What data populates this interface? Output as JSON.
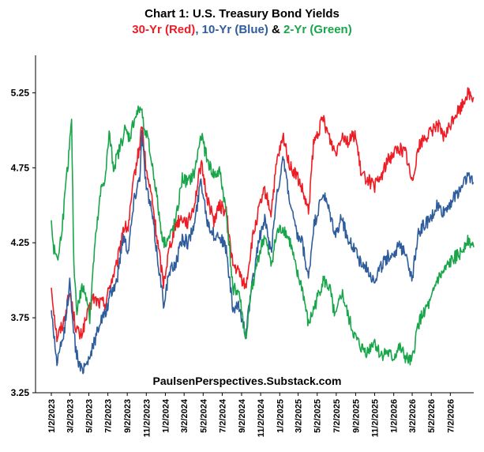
{
  "chart_data": {
    "type": "line",
    "title": "Chart 1: U.S. Treasury Bond Yields",
    "subtitle": {
      "red": "30-Yr (Red)",
      "sep1": ", ",
      "blue": "10-Yr (Blue)",
      "sep2": " & ",
      "green": "2-Yr (Green)"
    },
    "annotation": "PaulsenPerspectives.Substack.com",
    "xlabel": "",
    "ylabel": "",
    "ylim": [
      3.25,
      5.5
    ],
    "yticks": [
      "3.25",
      "3.75",
      "4.25",
      "4.75",
      "5.25"
    ],
    "xticks": [
      "1/2/2023",
      "3/2/2023",
      "5/2/2023",
      "7/2/2023",
      "9/2/2023",
      "11/2/2023",
      "1/2/2024",
      "3/2/2024",
      "5/2/2024",
      "7/2/2024",
      "9/2/2024",
      "11/2/2024",
      "1/2/2025",
      "3/2/2025",
      "5/2/2025",
      "7/2/2025",
      "9/2/2025",
      "11/2/2025",
      "1/2/2026",
      "3/2/2026",
      "5/2/2026",
      "7/2/2026"
    ],
    "xrange": [
      "2023-01-02",
      "2026-09-15"
    ],
    "grid": false,
    "legend": "none",
    "series": [
      {
        "name": "30-Yr",
        "color": "#ee1c25",
        "points": [
          [
            "2023-01-02",
            3.95
          ],
          [
            "2023-01-20",
            3.62
          ],
          [
            "2023-02-10",
            3.72
          ],
          [
            "2023-03-02",
            3.92
          ],
          [
            "2023-03-20",
            3.7
          ],
          [
            "2023-04-05",
            3.62
          ],
          [
            "2023-04-25",
            3.75
          ],
          [
            "2023-05-15",
            3.88
          ],
          [
            "2023-06-05",
            3.85
          ],
          [
            "2023-06-25",
            3.85
          ],
          [
            "2023-07-10",
            3.98
          ],
          [
            "2023-07-31",
            4.1
          ],
          [
            "2023-08-20",
            4.35
          ],
          [
            "2023-09-05",
            4.35
          ],
          [
            "2023-09-25",
            4.7
          ],
          [
            "2023-10-12",
            4.9
          ],
          [
            "2023-10-19",
            5.05
          ],
          [
            "2023-11-02",
            4.72
          ],
          [
            "2023-11-20",
            4.55
          ],
          [
            "2023-12-05",
            4.3
          ],
          [
            "2023-12-27",
            3.98
          ],
          [
            "2024-01-15",
            4.22
          ],
          [
            "2024-02-05",
            4.38
          ],
          [
            "2024-02-25",
            4.42
          ],
          [
            "2024-03-15",
            4.38
          ],
          [
            "2024-04-05",
            4.52
          ],
          [
            "2024-04-25",
            4.78
          ],
          [
            "2024-05-15",
            4.55
          ],
          [
            "2024-06-05",
            4.4
          ],
          [
            "2024-06-25",
            4.5
          ],
          [
            "2024-07-15",
            4.45
          ],
          [
            "2024-08-05",
            4.1
          ],
          [
            "2024-08-25",
            4.05
          ],
          [
            "2024-09-15",
            3.95
          ],
          [
            "2024-10-05",
            4.25
          ],
          [
            "2024-10-25",
            4.45
          ],
          [
            "2024-11-15",
            4.6
          ],
          [
            "2024-12-05",
            4.45
          ],
          [
            "2024-12-25",
            4.8
          ],
          [
            "2025-01-14",
            4.95
          ],
          [
            "2025-02-05",
            4.75
          ],
          [
            "2025-02-25",
            4.7
          ],
          [
            "2025-03-15",
            4.6
          ],
          [
            "2025-04-04",
            4.45
          ],
          [
            "2025-04-20",
            4.9
          ],
          [
            "2025-05-21",
            5.08
          ],
          [
            "2025-06-10",
            4.95
          ],
          [
            "2025-06-30",
            4.85
          ],
          [
            "2025-07-20",
            4.98
          ],
          [
            "2025-08-10",
            4.92
          ],
          [
            "2025-08-31",
            4.98
          ],
          [
            "2025-09-20",
            4.7
          ],
          [
            "2025-10-10",
            4.68
          ],
          [
            "2025-10-31",
            4.62
          ],
          [
            "2025-11-20",
            4.68
          ],
          [
            "2025-12-10",
            4.78
          ],
          [
            "2025-12-31",
            4.85
          ],
          [
            "2026-01-20",
            4.88
          ],
          [
            "2026-02-10",
            4.85
          ],
          [
            "2026-03-01",
            4.65
          ],
          [
            "2026-03-20",
            4.88
          ],
          [
            "2026-04-10",
            4.95
          ],
          [
            "2026-04-30",
            4.98
          ],
          [
            "2026-05-20",
            5.05
          ],
          [
            "2026-06-10",
            4.95
          ],
          [
            "2026-06-25",
            5.0
          ],
          [
            "2026-07-15",
            5.1
          ],
          [
            "2026-08-05",
            5.15
          ],
          [
            "2026-08-25",
            5.25
          ],
          [
            "2026-09-15",
            5.22
          ]
        ]
      },
      {
        "name": "10-Yr",
        "color": "#2f5d9c",
        "points": [
          [
            "2023-01-02",
            3.8
          ],
          [
            "2023-01-20",
            3.45
          ],
          [
            "2023-02-10",
            3.62
          ],
          [
            "2023-03-02",
            3.98
          ],
          [
            "2023-03-20",
            3.55
          ],
          [
            "2023-04-05",
            3.4
          ],
          [
            "2023-04-25",
            3.45
          ],
          [
            "2023-05-15",
            3.55
          ],
          [
            "2023-06-05",
            3.72
          ],
          [
            "2023-06-25",
            3.78
          ],
          [
            "2023-07-10",
            3.9
          ],
          [
            "2023-07-31",
            4.0
          ],
          [
            "2023-08-20",
            4.3
          ],
          [
            "2023-09-05",
            4.2
          ],
          [
            "2023-09-25",
            4.55
          ],
          [
            "2023-10-12",
            4.7
          ],
          [
            "2023-10-19",
            4.98
          ],
          [
            "2023-11-02",
            4.62
          ],
          [
            "2023-11-20",
            4.45
          ],
          [
            "2023-12-05",
            4.2
          ],
          [
            "2023-12-27",
            3.85
          ],
          [
            "2024-01-15",
            4.05
          ],
          [
            "2024-02-05",
            4.12
          ],
          [
            "2024-02-25",
            4.28
          ],
          [
            "2024-03-15",
            4.25
          ],
          [
            "2024-04-05",
            4.38
          ],
          [
            "2024-04-25",
            4.68
          ],
          [
            "2024-05-15",
            4.4
          ],
          [
            "2024-06-05",
            4.3
          ],
          [
            "2024-06-25",
            4.3
          ],
          [
            "2024-07-15",
            4.2
          ],
          [
            "2024-08-05",
            3.8
          ],
          [
            "2024-08-25",
            3.82
          ],
          [
            "2024-09-15",
            3.65
          ],
          [
            "2024-10-05",
            3.95
          ],
          [
            "2024-10-25",
            4.25
          ],
          [
            "2024-11-15",
            4.4
          ],
          [
            "2024-12-05",
            4.18
          ],
          [
            "2024-12-25",
            4.6
          ],
          [
            "2025-01-14",
            4.8
          ],
          [
            "2025-02-05",
            4.5
          ],
          [
            "2025-02-25",
            4.3
          ],
          [
            "2025-03-15",
            4.25
          ],
          [
            "2025-04-04",
            4.0
          ],
          [
            "2025-04-20",
            4.35
          ],
          [
            "2025-05-21",
            4.58
          ],
          [
            "2025-06-10",
            4.45
          ],
          [
            "2025-06-30",
            4.3
          ],
          [
            "2025-07-20",
            4.42
          ],
          [
            "2025-08-10",
            4.25
          ],
          [
            "2025-08-31",
            4.22
          ],
          [
            "2025-09-20",
            4.1
          ],
          [
            "2025-10-10",
            4.08
          ],
          [
            "2025-10-31",
            4.0
          ],
          [
            "2025-11-20",
            4.08
          ],
          [
            "2025-12-10",
            4.15
          ],
          [
            "2025-12-31",
            4.18
          ],
          [
            "2026-01-20",
            4.22
          ],
          [
            "2026-02-10",
            4.2
          ],
          [
            "2026-03-01",
            4.0
          ],
          [
            "2026-03-20",
            4.3
          ],
          [
            "2026-04-10",
            4.38
          ],
          [
            "2026-04-30",
            4.4
          ],
          [
            "2026-05-20",
            4.5
          ],
          [
            "2026-06-10",
            4.45
          ],
          [
            "2026-06-25",
            4.5
          ],
          [
            "2026-07-15",
            4.55
          ],
          [
            "2026-08-05",
            4.62
          ],
          [
            "2026-08-25",
            4.7
          ],
          [
            "2026-09-15",
            4.65
          ]
        ]
      },
      {
        "name": "2-Yr",
        "color": "#19a64b",
        "points": [
          [
            "2023-01-02",
            4.4
          ],
          [
            "2023-01-10",
            4.2
          ],
          [
            "2023-01-25",
            4.15
          ],
          [
            "2023-02-10",
            4.45
          ],
          [
            "2023-02-25",
            4.8
          ],
          [
            "2023-03-08",
            5.05
          ],
          [
            "2023-03-15",
            4.1
          ],
          [
            "2023-03-25",
            3.8
          ],
          [
            "2023-04-10",
            3.95
          ],
          [
            "2023-04-25",
            3.9
          ],
          [
            "2023-05-05",
            3.75
          ],
          [
            "2023-05-20",
            4.2
          ],
          [
            "2023-06-10",
            4.6
          ],
          [
            "2023-06-25",
            4.7
          ],
          [
            "2023-07-06",
            4.98
          ],
          [
            "2023-07-20",
            4.75
          ],
          [
            "2023-08-05",
            4.85
          ],
          [
            "2023-08-25",
            5.0
          ],
          [
            "2023-09-10",
            4.95
          ],
          [
            "2023-09-25",
            5.08
          ],
          [
            "2023-10-15",
            5.15
          ],
          [
            "2023-10-25",
            5.05
          ],
          [
            "2023-11-10",
            4.9
          ],
          [
            "2023-11-30",
            4.65
          ],
          [
            "2023-12-15",
            4.4
          ],
          [
            "2023-12-27",
            4.25
          ],
          [
            "2024-01-15",
            4.28
          ],
          [
            "2024-02-05",
            4.4
          ],
          [
            "2024-02-25",
            4.68
          ],
          [
            "2024-03-15",
            4.65
          ],
          [
            "2024-04-05",
            4.72
          ],
          [
            "2024-04-25",
            4.98
          ],
          [
            "2024-05-15",
            4.8
          ],
          [
            "2024-06-05",
            4.7
          ],
          [
            "2024-06-25",
            4.72
          ],
          [
            "2024-07-15",
            4.45
          ],
          [
            "2024-08-05",
            3.95
          ],
          [
            "2024-08-25",
            3.92
          ],
          [
            "2024-09-15",
            3.6
          ],
          [
            "2024-10-05",
            3.95
          ],
          [
            "2024-10-25",
            4.15
          ],
          [
            "2024-11-15",
            4.3
          ],
          [
            "2024-12-05",
            4.1
          ],
          [
            "2024-12-25",
            4.32
          ],
          [
            "2025-01-14",
            4.35
          ],
          [
            "2025-02-05",
            4.25
          ],
          [
            "2025-02-25",
            4.05
          ],
          [
            "2025-03-15",
            3.95
          ],
          [
            "2025-04-04",
            3.7
          ],
          [
            "2025-04-20",
            3.8
          ],
          [
            "2025-05-21",
            4.0
          ],
          [
            "2025-06-10",
            3.95
          ],
          [
            "2025-06-30",
            3.75
          ],
          [
            "2025-07-20",
            3.92
          ],
          [
            "2025-08-10",
            3.75
          ],
          [
            "2025-08-31",
            3.62
          ],
          [
            "2025-09-20",
            3.55
          ],
          [
            "2025-10-10",
            3.52
          ],
          [
            "2025-10-31",
            3.6
          ],
          [
            "2025-11-20",
            3.5
          ],
          [
            "2025-12-10",
            3.52
          ],
          [
            "2025-12-31",
            3.48
          ],
          [
            "2026-01-20",
            3.55
          ],
          [
            "2026-02-10",
            3.48
          ],
          [
            "2026-03-01",
            3.45
          ],
          [
            "2026-03-20",
            3.7
          ],
          [
            "2026-04-10",
            3.8
          ],
          [
            "2026-04-30",
            3.85
          ],
          [
            "2026-05-20",
            4.0
          ],
          [
            "2026-06-10",
            4.05
          ],
          [
            "2026-06-25",
            4.1
          ],
          [
            "2026-07-15",
            4.15
          ],
          [
            "2026-08-05",
            4.18
          ],
          [
            "2026-08-25",
            4.28
          ],
          [
            "2026-09-15",
            4.22
          ]
        ]
      }
    ]
  }
}
